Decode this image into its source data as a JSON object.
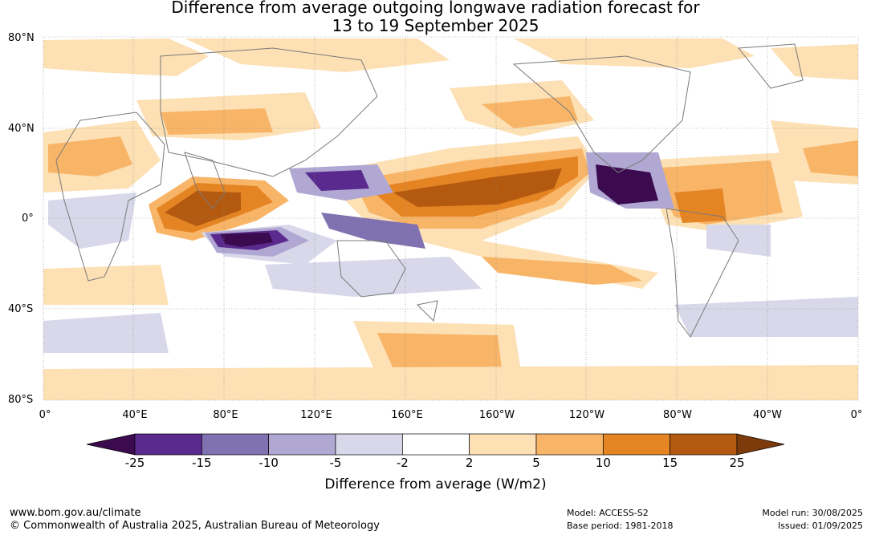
{
  "title": {
    "line1": "Difference from average outgoing longwave radiation forecast for",
    "line2": "13 to 19 September 2025"
  },
  "map": {
    "lat_labels": [
      "80°N",
      "40°N",
      "0°",
      "40°S",
      "80°S"
    ],
    "lon_labels": [
      "0°",
      "40°E",
      "80°E",
      "120°E",
      "160°E",
      "160°W",
      "120°W",
      "80°W",
      "40°W",
      "0°"
    ]
  },
  "colorbar": {
    "label": "Difference from average (W/m2)",
    "ticks": [
      "-25",
      "-15",
      "-10",
      "-5",
      "-2",
      "2",
      "5",
      "10",
      "15",
      "25"
    ],
    "colors": [
      "#3b0a4f",
      "#5a2a8e",
      "#8072b0",
      "#b0a8d2",
      "#d8d8ea",
      "#ffffff",
      "#fde0b4",
      "#f8b568",
      "#e58423",
      "#b35a10",
      "#7d3a0b"
    ]
  },
  "footer": {
    "website": "www.bom.gov.au/climate",
    "copyright": "© Commonwealth of Australia 2025, Australian Bureau of Meteorology",
    "model": "Model: ACCESS-S2",
    "base_period": "Base period: 1981-2018",
    "model_run": "Model run: 30/08/2025",
    "issued": "Issued: 01/09/2025"
  }
}
